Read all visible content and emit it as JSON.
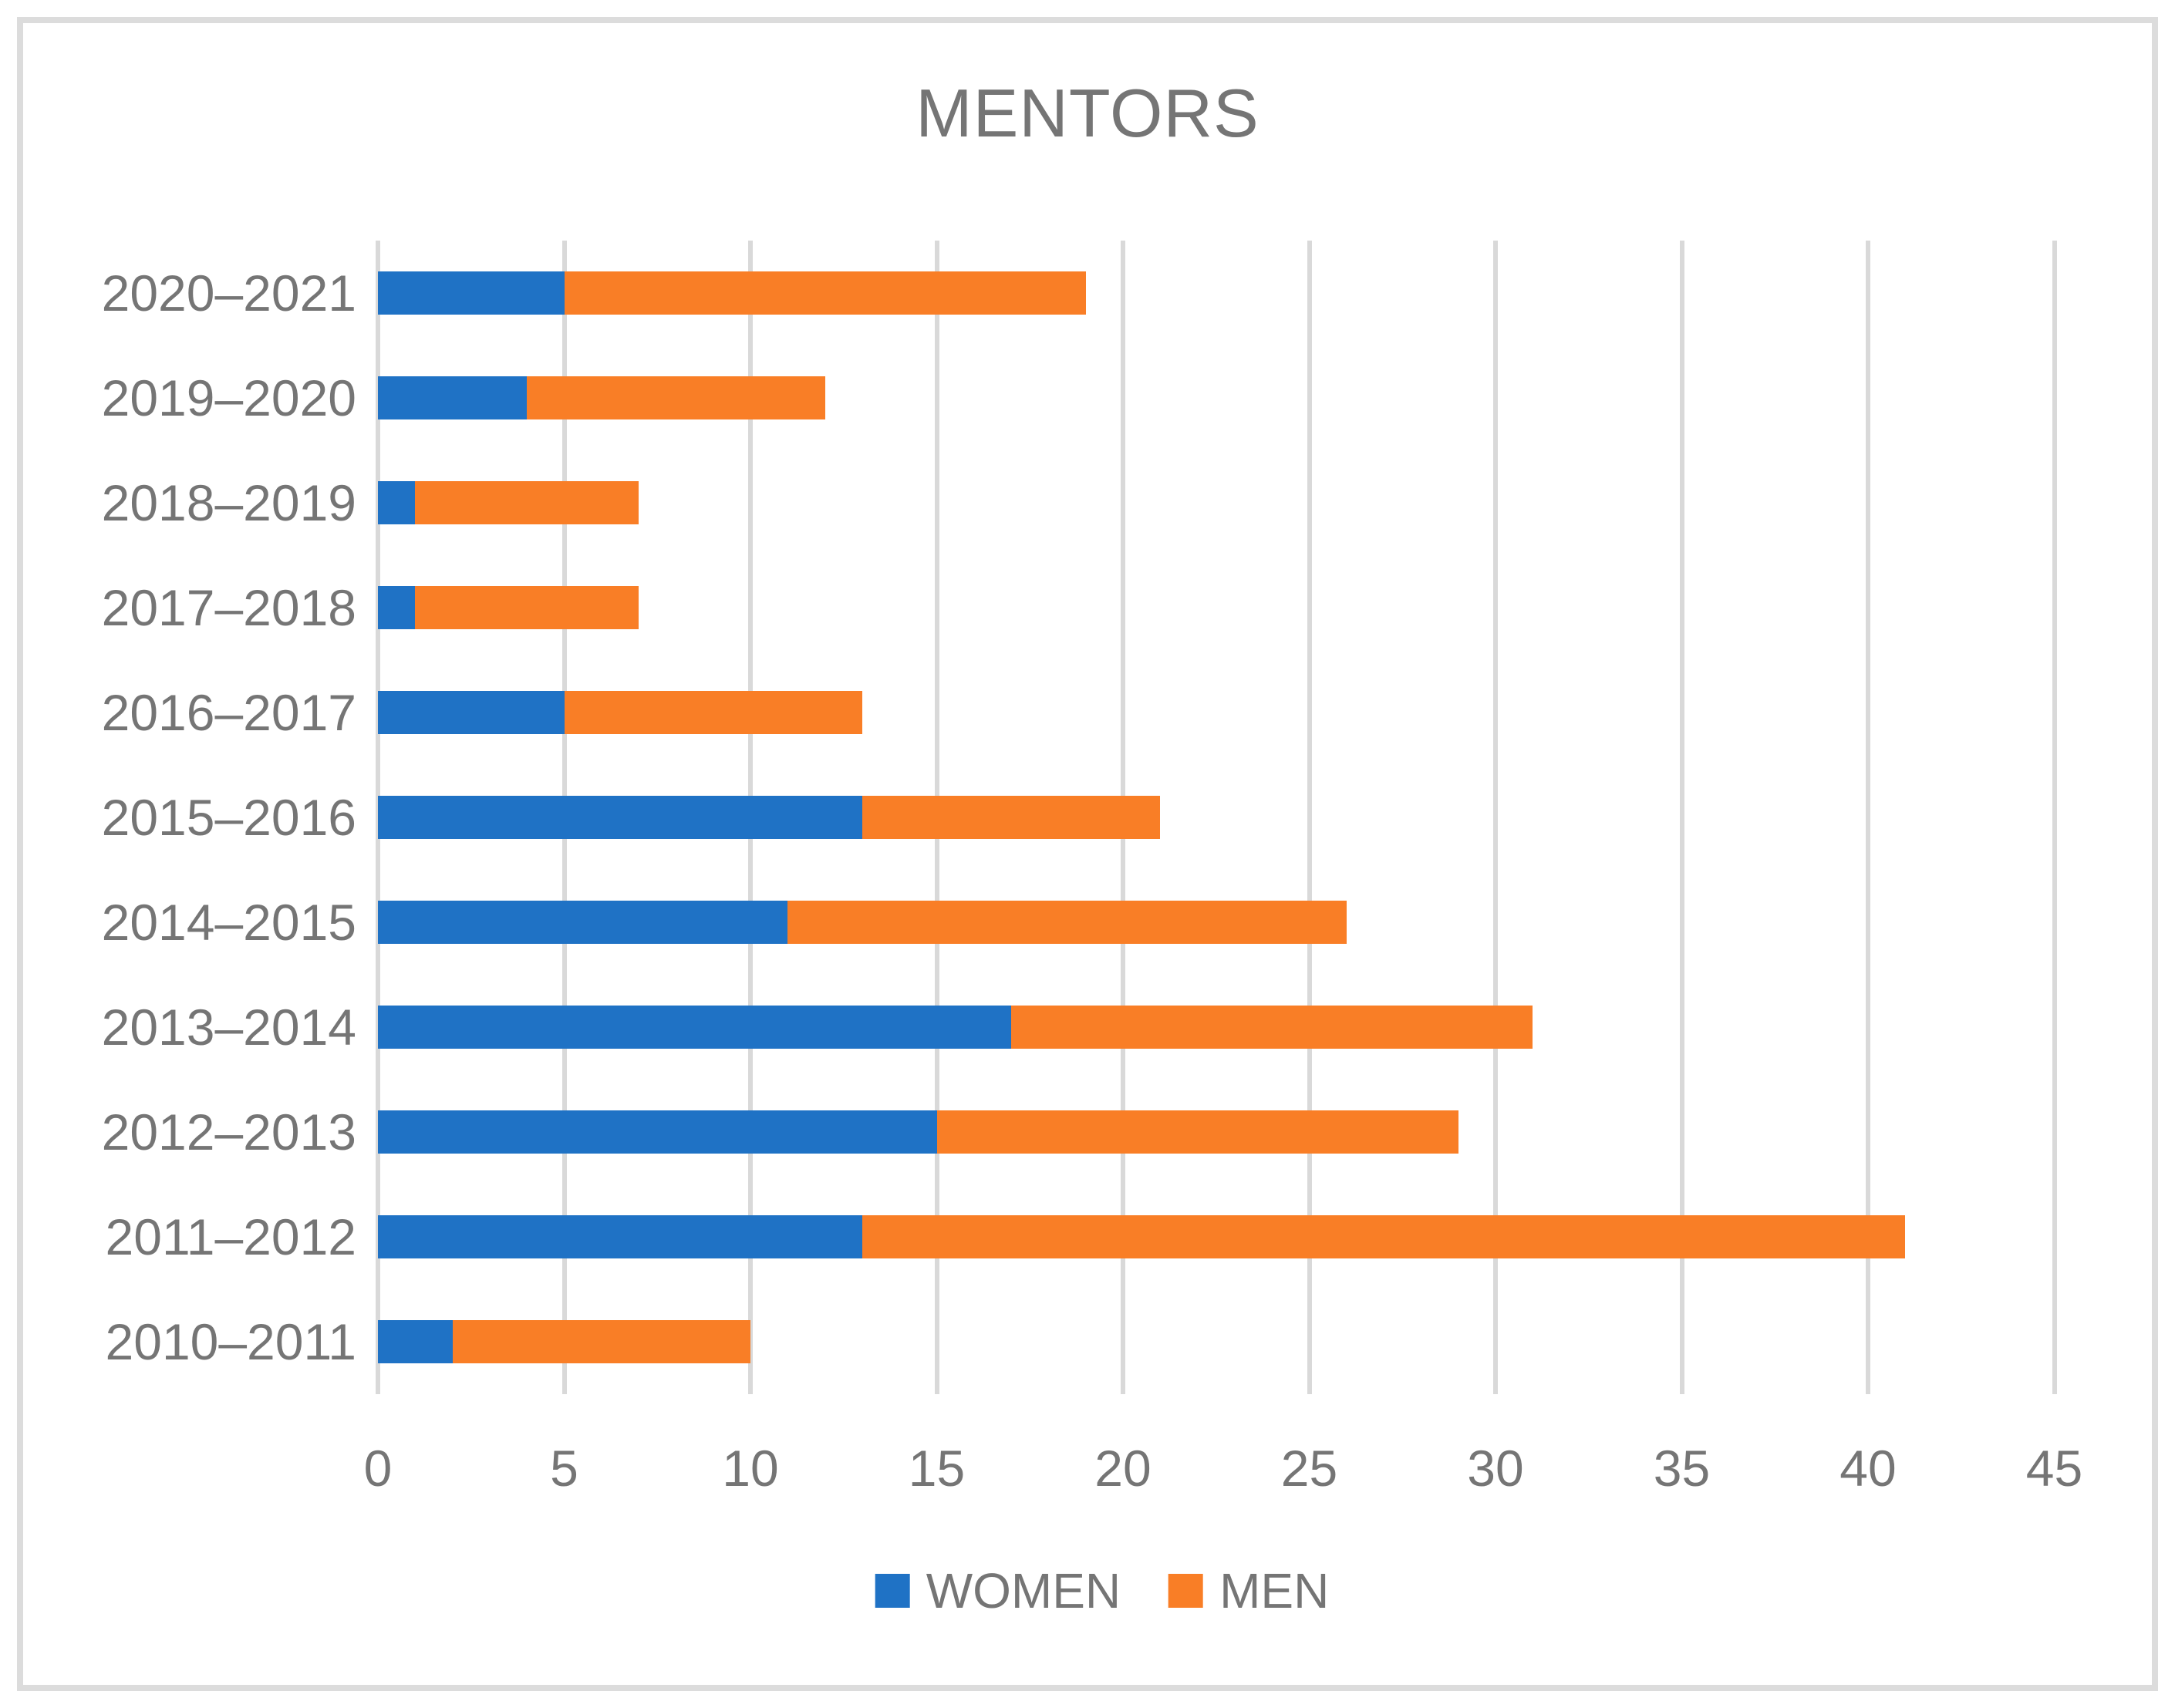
{
  "title": "MENTORS",
  "legend": {
    "items": [
      {
        "label": "WOMEN",
        "color": "#1F72C5"
      },
      {
        "label": "MEN",
        "color": "#F97E26"
      }
    ]
  },
  "chart_data": {
    "type": "bar",
    "orientation": "horizontal",
    "stacked": true,
    "title": "MENTORS",
    "categories": [
      "2020–2021",
      "2019–2020",
      "2018–2019",
      "2017–2018",
      "2016–2017",
      "2015–2016",
      "2014–2015",
      "2013–2014",
      "2012–2013",
      "2011–2012",
      "2010–2011"
    ],
    "series": [
      {
        "name": "WOMEN",
        "color": "#1F72C5",
        "values": [
          5,
          4,
          1,
          1,
          5,
          13,
          11,
          17,
          15,
          13,
          2
        ]
      },
      {
        "name": "MEN",
        "color": "#F97E26",
        "values": [
          14,
          8,
          6,
          6,
          8,
          8,
          15,
          14,
          14,
          28,
          8
        ]
      }
    ],
    "totals": [
      19,
      12,
      7,
      7,
      13,
      21,
      26,
      31,
      29,
      41,
      10
    ],
    "xlabel": "",
    "ylabel": "",
    "xlim": [
      0,
      45
    ],
    "xticks": [
      0,
      5,
      10,
      15,
      20,
      25,
      30,
      35,
      40,
      45
    ],
    "grid": true,
    "legend_position": "bottom",
    "colors": {
      "gridline": "#D9D9D9",
      "axis_text": "#757575",
      "title_text": "#757575",
      "frame_border": "#DCDCDC",
      "background": "#FFFFFF"
    }
  }
}
